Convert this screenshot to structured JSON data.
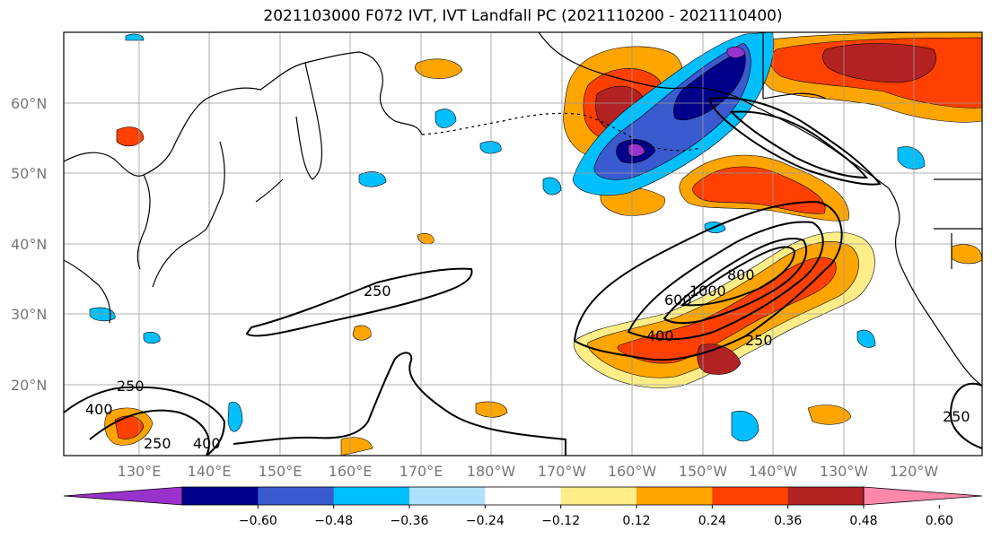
{
  "title": "2021103000 F072 IVT, IVT Landfall PC (2021110200 - 2021110400)",
  "latitude_labels": [
    "20°N",
    "30°N",
    "40°N",
    "50°N",
    "60°N"
  ],
  "longitude_labels": [
    "130°E",
    "140°E",
    "150°E",
    "160°E",
    "170°E",
    "180°W",
    "170°W",
    "160°W",
    "150°W",
    "140°W",
    "130°W",
    "120°W"
  ],
  "colorbar": {
    "ticks": [
      "−0.60",
      "−0.48",
      "−0.36",
      "−0.24",
      "−0.12",
      "0.12",
      "0.24",
      "0.36",
      "0.48",
      "0.60"
    ],
    "colors": [
      "#9932cc",
      "#00008b",
      "#3a5bcf",
      "#00bfff",
      "#b0e0ff",
      "#ffffff",
      "#ffee88",
      "#ffa500",
      "#ff4000",
      "#b22222",
      "#ff88aa"
    ]
  },
  "contour_labels": [
    "250",
    "250",
    "250",
    "250",
    "250",
    "400",
    "400",
    "400",
    "600",
    "800",
    "1000"
  ]
}
